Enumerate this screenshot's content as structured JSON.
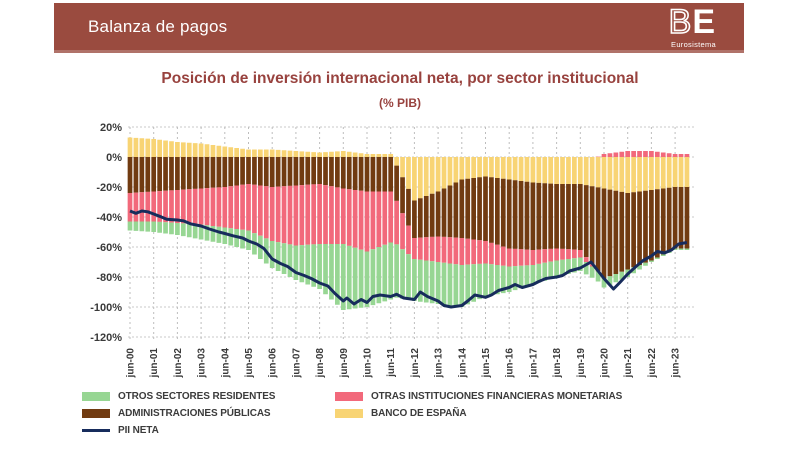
{
  "header": {
    "title": "Balanza de pagos",
    "bg_color": "#9A4B3F",
    "logo": {
      "b": "B",
      "e": "E",
      "subtitle": "Eurosistema"
    }
  },
  "chart": {
    "title": "Posición de inversión internacional neta, por sector institucional",
    "subtitle": "(% PIB)",
    "title_color": "#98423E"
  },
  "chart_data": {
    "type": "bar",
    "subtype": "stacked-bars-quarterly-with-line",
    "title": "Posición de inversión internacional neta, por sector institucional",
    "ylabel": "% PIB",
    "ylim": [
      -120,
      20
    ],
    "grid": "dashed",
    "y_tick_values": [
      20,
      0,
      -20,
      -40,
      -60,
      -80,
      -100,
      -120
    ],
    "y_tick_labels": [
      "20%",
      "0%",
      "-20%",
      "-40%",
      "-60%",
      "-80%",
      "-100%",
      "-120%"
    ],
    "x_tick_labels": [
      "jun-00",
      "jun-01",
      "jun-02",
      "jun-03",
      "jun-04",
      "jun-05",
      "jun-06",
      "jun-07",
      "jun-08",
      "jun-09",
      "jun-10",
      "jun-11",
      "jun-12",
      "jun-13",
      "jun-14",
      "jun-15",
      "jun-16",
      "jun-17",
      "jun-18",
      "jun-19",
      "jun-20",
      "jun-21",
      "jun-22",
      "jun-23"
    ],
    "anchor_years": [
      2000,
      2001,
      2002,
      2003,
      2004,
      2005,
      2006,
      2007,
      2008,
      2009,
      2010,
      2011,
      2012,
      2013,
      2014,
      2015,
      2016,
      2017,
      2018,
      2019,
      2020,
      2021,
      2022,
      2023
    ],
    "series": [
      {
        "name": "BANCO DE ESPAÑA",
        "color": "#F8D474",
        "values": [
          13,
          12,
          10,
          9,
          7,
          5,
          5,
          4,
          3,
          4,
          2,
          2,
          -29,
          -23,
          -15,
          -13,
          -15,
          -17,
          -18,
          -18,
          -21,
          -24,
          -22,
          -20
        ]
      },
      {
        "name": "ADMINISTRACIONES PÚBLICAS",
        "color": "#713B11",
        "values": [
          -24,
          -23,
          -22,
          -21,
          -20,
          -18,
          -20,
          -19,
          -18,
          -21,
          -23,
          -23,
          -25,
          -30,
          -39,
          -43,
          -46,
          -45,
          -43,
          -44,
          -60,
          -51,
          -47,
          -41
        ]
      },
      {
        "name": "OTRAS INSTITUCIONES FINANCIERAS MONETARIAS",
        "color": "#F2697B",
        "values": [
          -19,
          -20,
          -22,
          -24,
          -27,
          -31,
          -36,
          -40,
          -40,
          -37,
          -40,
          -34,
          -14,
          -17,
          -18,
          -15,
          -12,
          -10,
          -8,
          -5,
          2,
          4,
          4,
          2
        ]
      },
      {
        "name": "OTROS SECTORES RESIDENTES",
        "color": "#97D693",
        "values": [
          -6,
          -7,
          -8,
          -10,
          -11,
          -13,
          -18,
          -23,
          -30,
          -44,
          -37,
          -38,
          -28,
          -28,
          -28,
          -22,
          -17,
          -13,
          -11,
          -9,
          -6,
          -5,
          -1,
          -1
        ]
      }
    ],
    "line": {
      "name": "PII NETA",
      "color": "#172C5C",
      "points": [
        [
          2000.45,
          -36
        ],
        [
          2000.7,
          -37.5
        ],
        [
          2000.95,
          -36
        ],
        [
          2001.2,
          -36.5
        ],
        [
          2001.45,
          -38
        ],
        [
          2001.7,
          -39.5
        ],
        [
          2002.0,
          -41.5
        ],
        [
          2002.45,
          -42
        ],
        [
          2002.7,
          -42.5
        ],
        [
          2003.0,
          -44.5
        ],
        [
          2003.45,
          -46
        ],
        [
          2003.8,
          -48
        ],
        [
          2004.2,
          -50
        ],
        [
          2004.45,
          -51
        ],
        [
          2004.8,
          -52.5
        ],
        [
          2005.2,
          -54
        ],
        [
          2005.45,
          -56
        ],
        [
          2005.8,
          -58
        ],
        [
          2006.1,
          -61
        ],
        [
          2006.45,
          -68
        ],
        [
          2006.8,
          -71
        ],
        [
          2007.1,
          -73
        ],
        [
          2007.45,
          -77
        ],
        [
          2007.8,
          -79
        ],
        [
          2008.1,
          -81
        ],
        [
          2008.45,
          -84
        ],
        [
          2008.8,
          -86
        ],
        [
          2009.1,
          -91
        ],
        [
          2009.45,
          -96
        ],
        [
          2009.6,
          -94
        ],
        [
          2009.9,
          -98
        ],
        [
          2010.2,
          -95
        ],
        [
          2010.45,
          -97
        ],
        [
          2010.7,
          -93
        ],
        [
          2011.0,
          -92
        ],
        [
          2011.45,
          -93
        ],
        [
          2011.7,
          -91.5
        ],
        [
          2012.0,
          -94
        ],
        [
          2012.45,
          -95
        ],
        [
          2012.7,
          -90
        ],
        [
          2013.0,
          -93
        ],
        [
          2013.45,
          -96
        ],
        [
          2013.7,
          -99
        ],
        [
          2014.0,
          -100
        ],
        [
          2014.45,
          -99
        ],
        [
          2014.7,
          -96
        ],
        [
          2015.0,
          -92
        ],
        [
          2015.45,
          -93.5
        ],
        [
          2015.7,
          -92
        ],
        [
          2016.0,
          -89
        ],
        [
          2016.45,
          -87
        ],
        [
          2016.7,
          -85
        ],
        [
          2017.0,
          -87
        ],
        [
          2017.45,
          -85
        ],
        [
          2017.7,
          -83
        ],
        [
          2018.0,
          -81
        ],
        [
          2018.45,
          -80
        ],
        [
          2018.7,
          -79
        ],
        [
          2019.0,
          -76
        ],
        [
          2019.45,
          -74
        ],
        [
          2019.9,
          -70
        ],
        [
          2020.2,
          -76
        ],
        [
          2020.45,
          -81
        ],
        [
          2020.85,
          -88
        ],
        [
          2021.1,
          -84
        ],
        [
          2021.45,
          -78
        ],
        [
          2021.8,
          -73
        ],
        [
          2022.1,
          -69
        ],
        [
          2022.45,
          -66
        ],
        [
          2022.7,
          -63
        ],
        [
          2023.0,
          -64
        ],
        [
          2023.3,
          -62
        ],
        [
          2023.6,
          -58
        ],
        [
          2023.95,
          -57
        ]
      ]
    }
  },
  "legend": {
    "items": [
      {
        "label": "OTROS SECTORES RESIDENTES",
        "color": "#97D693",
        "type": "box"
      },
      {
        "label": "OTRAS INSTITUCIONES FINANCIERAS MONETARIAS",
        "color": "#F2697B",
        "type": "box"
      },
      {
        "label": "ADMINISTRACIONES PÚBLICAS",
        "color": "#713B11",
        "type": "box"
      },
      {
        "label": "BANCO DE ESPAÑA",
        "color": "#F8D474",
        "type": "box"
      },
      {
        "label": "PII NETA",
        "color": "#172C5C",
        "type": "line"
      }
    ]
  }
}
